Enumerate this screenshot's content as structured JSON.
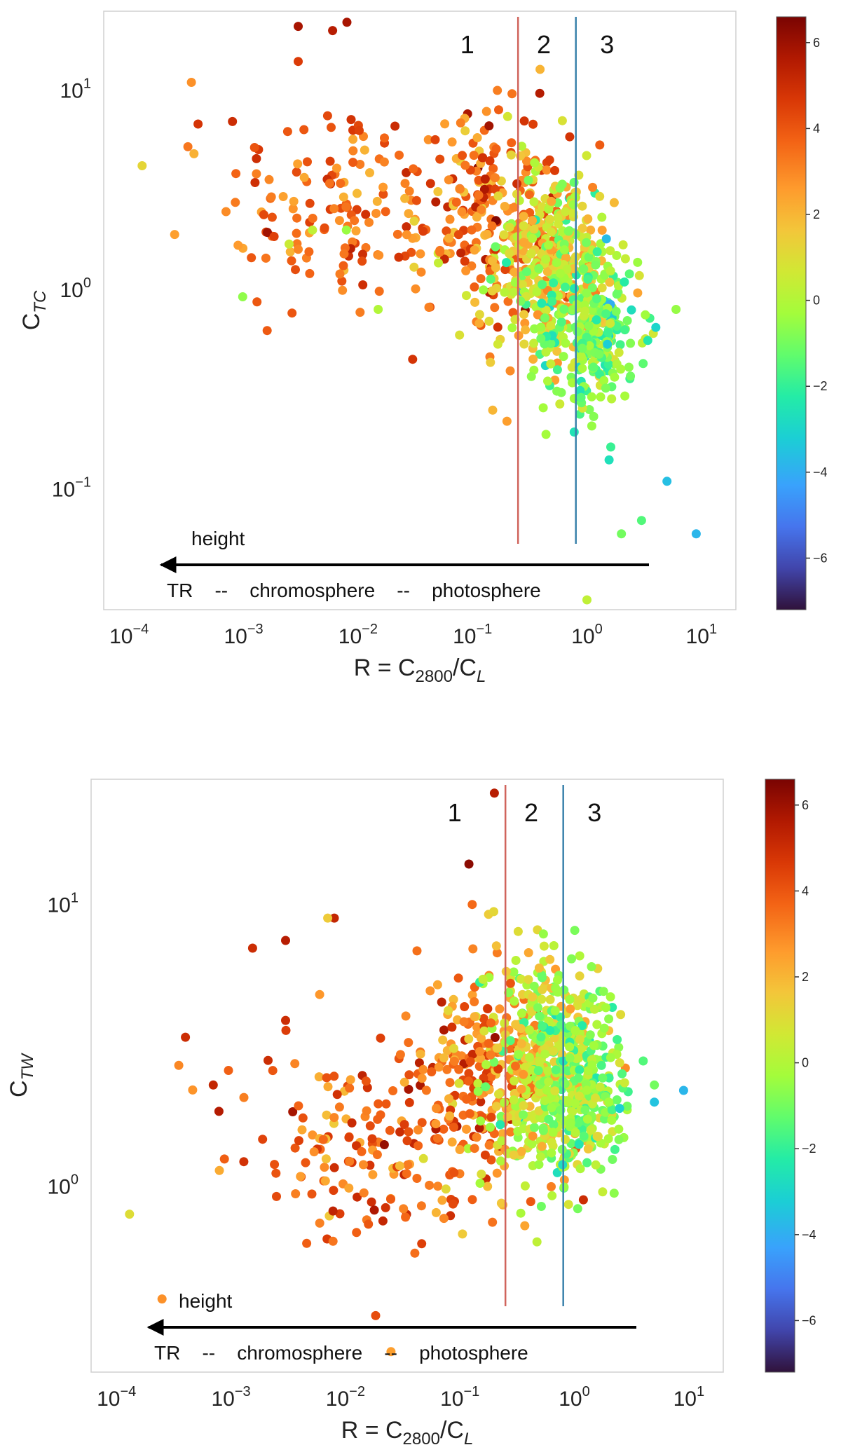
{
  "chart_data": [
    {
      "type": "scatter",
      "x_scale": "log",
      "y_scale": "log",
      "xlim": [
        6e-05,
        20
      ],
      "ylim": [
        0.025,
        25
      ],
      "x_ticks": [
        {
          "base": "10",
          "exp": "−4",
          "v": 0.0001
        },
        {
          "base": "10",
          "exp": "−3",
          "v": 0.001
        },
        {
          "base": "10",
          "exp": "−2",
          "v": 0.01
        },
        {
          "base": "10",
          "exp": "−1",
          "v": 0.1
        },
        {
          "base": "10",
          "exp": "0",
          "v": 1
        },
        {
          "base": "10",
          "exp": "1",
          "v": 10
        }
      ],
      "y_ticks": [
        {
          "base": "10",
          "exp": "1",
          "v": 10
        },
        {
          "base": "10",
          "exp": "0",
          "v": 1
        },
        {
          "base": "10",
          "exp": "−1",
          "v": 0.1
        }
      ],
      "xlabel": {
        "main": "R = C",
        "sub1": "2800",
        "mid": "/C",
        "sub2": "L"
      },
      "ylabel": {
        "main": "C",
        "sub": "TC"
      },
      "vlines": [
        {
          "x": 0.25,
          "color": "#d0645c"
        },
        {
          "x": 0.8,
          "color": "#3a82ab"
        }
      ],
      "region_labels": [
        {
          "text": "1",
          "x": 0.09
        },
        {
          "text": "2",
          "x": 0.42
        },
        {
          "text": "3",
          "x": 1.5
        }
      ],
      "annotation": {
        "arrow_label": "height",
        "scale_text": "TR    --    chromosphere    --    photosphere"
      },
      "colorbar": {
        "range": [
          -7.2,
          6.6
        ],
        "ticks": [
          6,
          4,
          2,
          0,
          -2,
          -4,
          -6
        ],
        "tick_labels": [
          "6",
          "4",
          "2",
          "0",
          "−2",
          "−4",
          "−6"
        ]
      },
      "outliers": [
        [
          0.00013,
          4.2,
          1.2
        ],
        [
          0.00025,
          1.9,
          2.5
        ],
        [
          0.00035,
          11,
          2.8
        ],
        [
          0.0004,
          6.8,
          4.8
        ],
        [
          0.0008,
          7,
          5.0
        ],
        [
          0.003,
          21,
          5.8
        ],
        [
          0.003,
          14,
          4.6
        ],
        [
          0.006,
          20,
          5.5
        ],
        [
          0.008,
          22,
          5.8
        ],
        [
          0.0025,
          1.7,
          0.5
        ],
        [
          0.003,
          1.6,
          3.0
        ],
        [
          0.004,
          2.0,
          0.3
        ],
        [
          0.015,
          0.8,
          0.0
        ],
        [
          0.03,
          0.45,
          4.8
        ],
        [
          0.15,
          0.25,
          2.0
        ],
        [
          0.2,
          0.22,
          2.5
        ],
        [
          1.0,
          0.028,
          0.3
        ],
        [
          5,
          0.11,
          -3.6
        ],
        [
          9,
          0.06,
          -3.8
        ],
        [
          6,
          0.8,
          -0.5
        ],
        [
          3,
          0.07,
          -1.5
        ],
        [
          2,
          0.06,
          -1.0
        ],
        [
          4,
          0.65,
          -3.0
        ]
      ],
      "clusters": [
        {
          "n": 140,
          "lx": -2.2,
          "ly": 0.4,
          "sx": 0.5,
          "sy": 0.28,
          "cm": 3.6,
          "cs": 1.0
        },
        {
          "n": 230,
          "lx": -0.85,
          "ly": 0.38,
          "sx": 0.32,
          "sy": 0.26,
          "cm": 3.4,
          "cs": 1.2
        },
        {
          "n": 380,
          "lx": -0.3,
          "ly": 0.12,
          "sx": 0.26,
          "sy": 0.25,
          "cm": 0.9,
          "cs": 1.2
        },
        {
          "n": 260,
          "lx": 0.05,
          "ly": -0.2,
          "sx": 0.2,
          "sy": 0.22,
          "cm": -0.8,
          "cs": 1.0
        }
      ]
    },
    {
      "type": "scatter",
      "x_scale": "log",
      "y_scale": "log",
      "xlim": [
        6e-05,
        20
      ],
      "ylim": [
        0.22,
        28
      ],
      "x_ticks": [
        {
          "base": "10",
          "exp": "−4",
          "v": 0.0001
        },
        {
          "base": "10",
          "exp": "−3",
          "v": 0.001
        },
        {
          "base": "10",
          "exp": "−2",
          "v": 0.01
        },
        {
          "base": "10",
          "exp": "−1",
          "v": 0.1
        },
        {
          "base": "10",
          "exp": "0",
          "v": 1
        },
        {
          "base": "10",
          "exp": "1",
          "v": 10
        }
      ],
      "y_ticks": [
        {
          "base": "10",
          "exp": "1",
          "v": 10
        },
        {
          "base": "10",
          "exp": "0",
          "v": 1
        }
      ],
      "xlabel": {
        "main": "R = C",
        "sub1": "2800",
        "mid": "/C",
        "sub2": "L"
      },
      "ylabel": {
        "main": "C",
        "sub": "TW"
      },
      "vlines": [
        {
          "x": 0.25,
          "color": "#d0645c"
        },
        {
          "x": 0.8,
          "color": "#3a82ab"
        }
      ],
      "region_labels": [
        {
          "text": "1",
          "x": 0.09
        },
        {
          "text": "2",
          "x": 0.42
        },
        {
          "text": "3",
          "x": 1.5
        }
      ],
      "annotation": {
        "arrow_label": "height",
        "scale_text": "TR    --    chromosphere    --    photosphere"
      },
      "colorbar": {
        "range": [
          -7.2,
          6.6
        ],
        "ticks": [
          6,
          4,
          2,
          0,
          -2,
          -4,
          -6
        ],
        "tick_labels": [
          "6",
          "4",
          "2",
          "0",
          "−2",
          "−4",
          "−6"
        ]
      },
      "outliers": [
        [
          0.00013,
          0.8,
          1.0
        ],
        [
          0.00025,
          0.4,
          2.8
        ],
        [
          0.00035,
          2.7,
          3.0
        ],
        [
          0.0004,
          3.4,
          5.0
        ],
        [
          0.0007,
          2.3,
          5.2
        ],
        [
          0.003,
          7.5,
          5.5
        ],
        [
          0.003,
          3.9,
          5.0
        ],
        [
          0.008,
          9,
          5.2
        ],
        [
          0.007,
          9,
          1.5
        ],
        [
          0.025,
          0.26,
          2.5
        ],
        [
          0.2,
          25,
          5.5
        ],
        [
          0.12,
          14,
          6.3
        ],
        [
          1.2,
          0.9,
          5.0
        ],
        [
          9,
          2.2,
          -3.8
        ],
        [
          5,
          2.0,
          -3.5
        ],
        [
          5,
          2.3,
          -1.0
        ],
        [
          4,
          2.8,
          -1.5
        ],
        [
          2,
          2.0,
          -0.3
        ]
      ],
      "clusters": [
        {
          "n": 160,
          "lx": -1.85,
          "ly": 0.12,
          "sx": 0.5,
          "sy": 0.18,
          "cm": 3.6,
          "cs": 1.0
        },
        {
          "n": 220,
          "lx": -0.85,
          "ly": 0.38,
          "sx": 0.3,
          "sy": 0.2,
          "cm": 3.3,
          "cs": 1.2
        },
        {
          "n": 380,
          "lx": -0.3,
          "ly": 0.42,
          "sx": 0.24,
          "sy": 0.2,
          "cm": 0.7,
          "cs": 1.2
        },
        {
          "n": 280,
          "lx": 0.05,
          "ly": 0.35,
          "sx": 0.2,
          "sy": 0.17,
          "cm": -0.6,
          "cs": 1.0
        }
      ]
    }
  ]
}
